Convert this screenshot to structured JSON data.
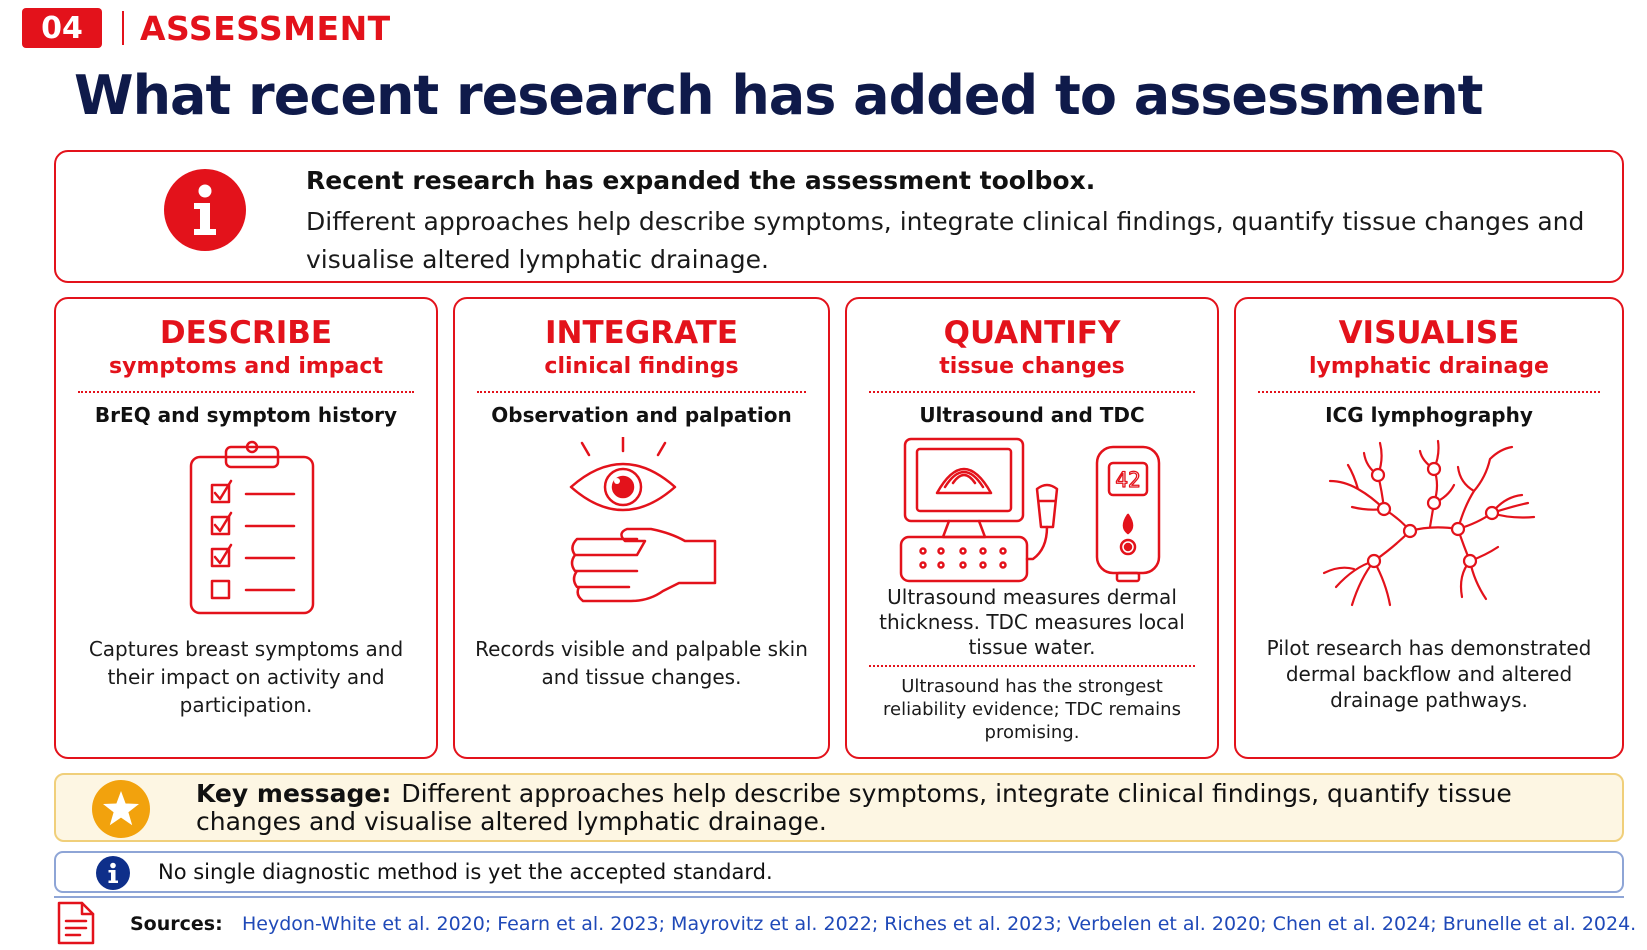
{
  "colors": {
    "accent": "#e3121b",
    "navy": "#0f1a4a",
    "key_bg": "#fdf6e3",
    "key_icon": "#f2a20d",
    "note_icon": "#0e2f8a",
    "link": "#1f49b8"
  },
  "header": {
    "section_number": "04",
    "section_label": "ASSESSMENT",
    "title": "What recent research has added to assessment"
  },
  "intro": {
    "icon": "info-icon",
    "heading": "Recent research has expanded the assessment toolbox.",
    "body": "Different approaches help describe symptoms, integrate clinical findings, quantify tissue changes and visualise altered lymphatic drainage."
  },
  "cards": [
    {
      "title": "DESCRIBE",
      "subtitle": "symptoms and impact",
      "tool": "BrEQ and symptom history",
      "icon": "clipboard-checklist-icon",
      "description": "Captures breast symptoms and their impact on activity and participation."
    },
    {
      "title": "INTEGRATE",
      "subtitle": "clinical findings",
      "tool": "Observation and palpation",
      "icon": "eye-and-hand-icon",
      "description": "Records visible and palpable skin and tissue changes."
    },
    {
      "title": "QUANTIFY",
      "subtitle": "tissue changes",
      "tool": "Ultrasound and TDC",
      "icon": "ultrasound-and-tdc-icon",
      "device_reading": "42",
      "description": "Ultrasound measures dermal thickness. TDC measures local tissue water.",
      "note": "Ultrasound has the strongest reliability evidence; TDC remains promising."
    },
    {
      "title": "VISUALISE",
      "subtitle": "lymphatic drainage",
      "tool": "ICG lymphography",
      "icon": "lymphatic-network-icon",
      "description": "Pilot research has demonstrated dermal backflow and altered drainage pathways."
    }
  ],
  "key_message": {
    "icon": "star-icon",
    "label": "Key message:",
    "text": "Different approaches help describe symptoms, integrate clinical findings, quantify tissue changes and visualise altered lymphatic drainage."
  },
  "note": {
    "icon": "info-icon",
    "text": "No single diagnostic method is yet the accepted standard."
  },
  "sources": {
    "icon": "document-icon",
    "label": "Sources:",
    "text": "Heydon-White et al. 2020; Fearn et al. 2023; Mayrovitz et al. 2022; Riches et al. 2023; Verbelen et al. 2020; Chen et al. 2024; Brunelle et al. 2024."
  }
}
